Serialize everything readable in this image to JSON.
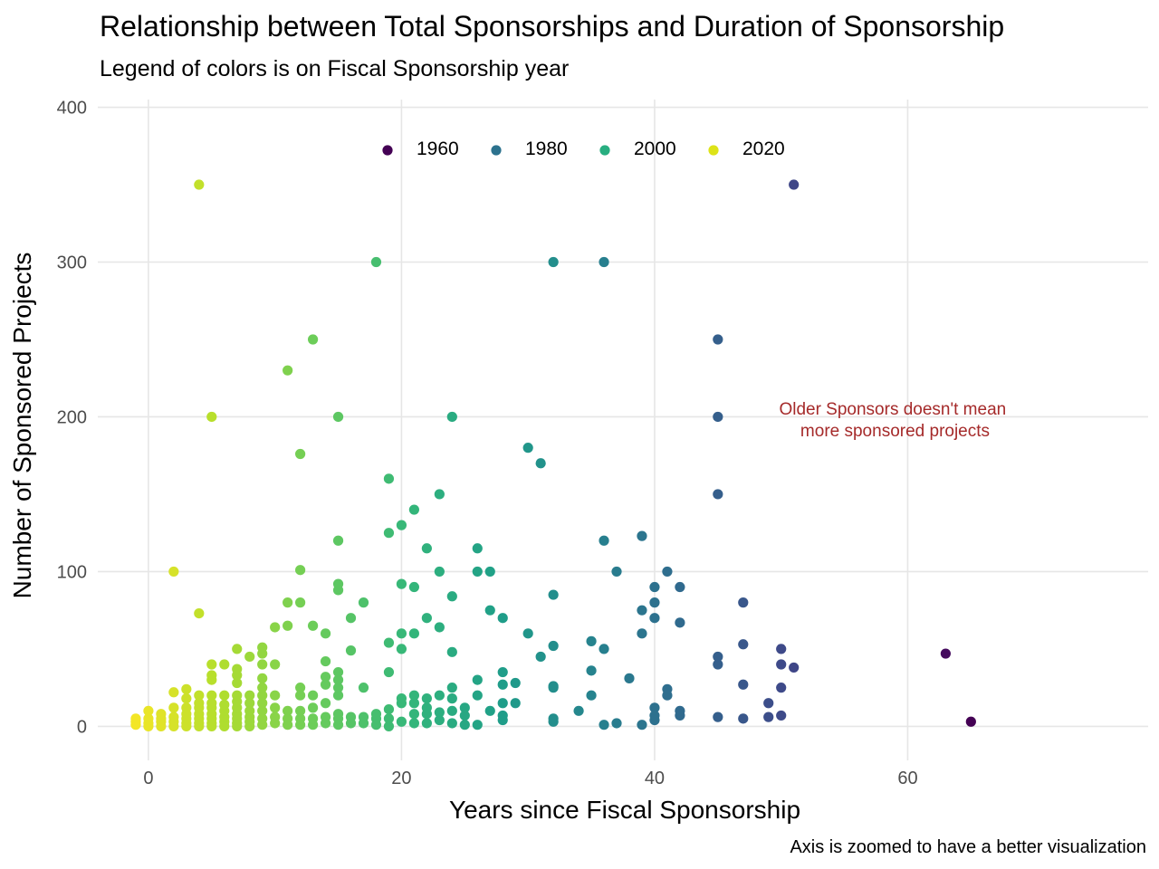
{
  "chart_data": {
    "type": "scatter",
    "title": "Relationship between Total Sponsorships and Duration of Sponsorship",
    "subtitle": "Legend of colors is on Fiscal Sponsorship year",
    "xlabel": "Years since Fiscal Sponsorship",
    "ylabel": "Number of Sponsored Projects",
    "caption": "Axis is zoomed to have a better visualization",
    "xlim": [
      -4,
      79
    ],
    "ylim": [
      -22,
      405
    ],
    "x_ticks": [
      0,
      20,
      40,
      60
    ],
    "y_ticks": [
      0,
      100,
      200,
      300,
      400
    ],
    "grid": true,
    "color_scale": "viridis (year 1958 → 2025)",
    "color_range": [
      1958,
      2025
    ],
    "legend": {
      "placement": "top-center",
      "entries": [
        {
          "label": "1960",
          "color": "#440154"
        },
        {
          "label": "1980",
          "color": "#2c728e"
        },
        {
          "label": "2000",
          "color": "#28ae80"
        },
        {
          "label": "2020",
          "color": "#dde318"
        }
      ]
    },
    "annotation": {
      "text": [
        "Older Sponsors doesn't mean",
        "more sponsored projects"
      ],
      "x": 59,
      "y": 198,
      "color": "#a52a2a"
    },
    "points": [
      [
        -1,
        1
      ],
      [
        -1,
        3
      ],
      [
        -1,
        5
      ],
      [
        0,
        0
      ],
      [
        0,
        2
      ],
      [
        0,
        5
      ],
      [
        0,
        10
      ],
      [
        1,
        0
      ],
      [
        1,
        3
      ],
      [
        1,
        5
      ],
      [
        1,
        8
      ],
      [
        2,
        0
      ],
      [
        2,
        3
      ],
      [
        2,
        6
      ],
      [
        2,
        12
      ],
      [
        2,
        22
      ],
      [
        2,
        100
      ],
      [
        3,
        0
      ],
      [
        3,
        2
      ],
      [
        3,
        5
      ],
      [
        3,
        8
      ],
      [
        3,
        12
      ],
      [
        3,
        18
      ],
      [
        3,
        24
      ],
      [
        4,
        0
      ],
      [
        4,
        2
      ],
      [
        4,
        5
      ],
      [
        4,
        8
      ],
      [
        4,
        12
      ],
      [
        4,
        15
      ],
      [
        4,
        20
      ],
      [
        4,
        73
      ],
      [
        4,
        350
      ],
      [
        5,
        0
      ],
      [
        5,
        2
      ],
      [
        5,
        5
      ],
      [
        5,
        8
      ],
      [
        5,
        12
      ],
      [
        5,
        15
      ],
      [
        5,
        20
      ],
      [
        5,
        30
      ],
      [
        5,
        33
      ],
      [
        5,
        40
      ],
      [
        5,
        200
      ],
      [
        6,
        0
      ],
      [
        6,
        3
      ],
      [
        6,
        6
      ],
      [
        6,
        10
      ],
      [
        6,
        14
      ],
      [
        6,
        20
      ],
      [
        6,
        40
      ],
      [
        7,
        0
      ],
      [
        7,
        2
      ],
      [
        7,
        5
      ],
      [
        7,
        8
      ],
      [
        7,
        12
      ],
      [
        7,
        16
      ],
      [
        7,
        20
      ],
      [
        7,
        28
      ],
      [
        7,
        33
      ],
      [
        7,
        37
      ],
      [
        7,
        50
      ],
      [
        8,
        0
      ],
      [
        8,
        3
      ],
      [
        8,
        6
      ],
      [
        8,
        10
      ],
      [
        8,
        15
      ],
      [
        8,
        20
      ],
      [
        8,
        45
      ],
      [
        9,
        1
      ],
      [
        9,
        5
      ],
      [
        9,
        10
      ],
      [
        9,
        15
      ],
      [
        9,
        20
      ],
      [
        9,
        25
      ],
      [
        9,
        31
      ],
      [
        9,
        40
      ],
      [
        9,
        47
      ],
      [
        9,
        51
      ],
      [
        10,
        2
      ],
      [
        10,
        6
      ],
      [
        10,
        12
      ],
      [
        10,
        20
      ],
      [
        10,
        40
      ],
      [
        10,
        64
      ],
      [
        11,
        1
      ],
      [
        11,
        5
      ],
      [
        11,
        10
      ],
      [
        11,
        65
      ],
      [
        11,
        80
      ],
      [
        11,
        230
      ],
      [
        12,
        1
      ],
      [
        12,
        5
      ],
      [
        12,
        10
      ],
      [
        12,
        20
      ],
      [
        12,
        25
      ],
      [
        12,
        80
      ],
      [
        12,
        101
      ],
      [
        12,
        176
      ],
      [
        13,
        1
      ],
      [
        13,
        5
      ],
      [
        13,
        12
      ],
      [
        13,
        20
      ],
      [
        13,
        65
      ],
      [
        13,
        250
      ],
      [
        14,
        2
      ],
      [
        14,
        6
      ],
      [
        14,
        15
      ],
      [
        14,
        27
      ],
      [
        14,
        32
      ],
      [
        14,
        42
      ],
      [
        14,
        60
      ],
      [
        15,
        1
      ],
      [
        15,
        5
      ],
      [
        15,
        8
      ],
      [
        15,
        20
      ],
      [
        15,
        25
      ],
      [
        15,
        30
      ],
      [
        15,
        35
      ],
      [
        15,
        88
      ],
      [
        15,
        92
      ],
      [
        15,
        120
      ],
      [
        15,
        200
      ],
      [
        16,
        2
      ],
      [
        16,
        6
      ],
      [
        16,
        49
      ],
      [
        16,
        70
      ],
      [
        17,
        2
      ],
      [
        17,
        6
      ],
      [
        17,
        25
      ],
      [
        17,
        80
      ],
      [
        18,
        1
      ],
      [
        18,
        5
      ],
      [
        18,
        8
      ],
      [
        18,
        300
      ],
      [
        19,
        0
      ],
      [
        19,
        5
      ],
      [
        19,
        11
      ],
      [
        19,
        35
      ],
      [
        19,
        54
      ],
      [
        19,
        125
      ],
      [
        19,
        160
      ],
      [
        20,
        3
      ],
      [
        20,
        15
      ],
      [
        20,
        18
      ],
      [
        20,
        50
      ],
      [
        20,
        60
      ],
      [
        20,
        92
      ],
      [
        20,
        130
      ],
      [
        21,
        2
      ],
      [
        21,
        8
      ],
      [
        21,
        15
      ],
      [
        21,
        20
      ],
      [
        21,
        60
      ],
      [
        21,
        90
      ],
      [
        21,
        140
      ],
      [
        22,
        2
      ],
      [
        22,
        8
      ],
      [
        22,
        12
      ],
      [
        22,
        18
      ],
      [
        22,
        70
      ],
      [
        22,
        115
      ],
      [
        23,
        4
      ],
      [
        23,
        9
      ],
      [
        23,
        20
      ],
      [
        23,
        64
      ],
      [
        23,
        100
      ],
      [
        23,
        150
      ],
      [
        24,
        2
      ],
      [
        24,
        10
      ],
      [
        24,
        18
      ],
      [
        24,
        25
      ],
      [
        24,
        48
      ],
      [
        24,
        84
      ],
      [
        24,
        200
      ],
      [
        25,
        1
      ],
      [
        25,
        7
      ],
      [
        25,
        12
      ],
      [
        26,
        1
      ],
      [
        26,
        20
      ],
      [
        26,
        30
      ],
      [
        26,
        100
      ],
      [
        26,
        115
      ],
      [
        27,
        10
      ],
      [
        27,
        75
      ],
      [
        27,
        100
      ],
      [
        28,
        4
      ],
      [
        28,
        7
      ],
      [
        28,
        15
      ],
      [
        28,
        27
      ],
      [
        28,
        35
      ],
      [
        28,
        70
      ],
      [
        29,
        15
      ],
      [
        29,
        28
      ],
      [
        30,
        60
      ],
      [
        30,
        180
      ],
      [
        31,
        45
      ],
      [
        31,
        170
      ],
      [
        32,
        3
      ],
      [
        32,
        5
      ],
      [
        32,
        25
      ],
      [
        32,
        26
      ],
      [
        32,
        52
      ],
      [
        32,
        85
      ],
      [
        32,
        300
      ],
      [
        34,
        10
      ],
      [
        35,
        20
      ],
      [
        35,
        36
      ],
      [
        35,
        55
      ],
      [
        36,
        1
      ],
      [
        36,
        50
      ],
      [
        36,
        120
      ],
      [
        36,
        300
      ],
      [
        37,
        2
      ],
      [
        37,
        100
      ],
      [
        38,
        31
      ],
      [
        39,
        1
      ],
      [
        39,
        60
      ],
      [
        39,
        75
      ],
      [
        39,
        123
      ],
      [
        40,
        4
      ],
      [
        40,
        7
      ],
      [
        40,
        12
      ],
      [
        40,
        70
      ],
      [
        40,
        80
      ],
      [
        40,
        90
      ],
      [
        41,
        20
      ],
      [
        41,
        24
      ],
      [
        41,
        100
      ],
      [
        42,
        7
      ],
      [
        42,
        10
      ],
      [
        42,
        67
      ],
      [
        42,
        90
      ],
      [
        45,
        6
      ],
      [
        45,
        40
      ],
      [
        45,
        45
      ],
      [
        45,
        150
      ],
      [
        45,
        200
      ],
      [
        45,
        250
      ],
      [
        47,
        5
      ],
      [
        47,
        27
      ],
      [
        47,
        53
      ],
      [
        47,
        80
      ],
      [
        49,
        6
      ],
      [
        49,
        15
      ],
      [
        50,
        7
      ],
      [
        50,
        25
      ],
      [
        50,
        40
      ],
      [
        50,
        50
      ],
      [
        51,
        38
      ],
      [
        51,
        350
      ],
      [
        63,
        47
      ],
      [
        65,
        3
      ]
    ]
  }
}
